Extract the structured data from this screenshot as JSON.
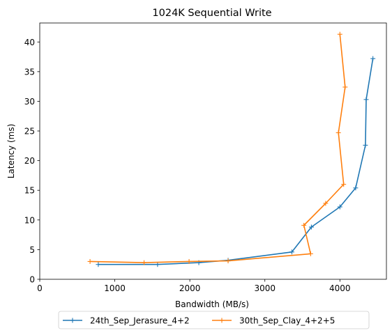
{
  "chart_data": {
    "type": "line",
    "title": "1024K  Sequential Write",
    "xlabel": "Bandwidth (MB/s)",
    "ylabel": "Latency (ms)",
    "xlim": [
      0,
      4620
    ],
    "ylim": [
      0,
      43.2
    ],
    "xticks": [
      0,
      1000,
      2000,
      3000,
      4000
    ],
    "yticks": [
      0,
      5,
      10,
      15,
      20,
      25,
      30,
      35,
      40
    ],
    "grid": false,
    "legend_position": "below",
    "series": [
      {
        "name": "24th_Sep_Jerasure_4+2",
        "color": "#1f77b4",
        "marker": "+",
        "x": [
          780,
          1570,
          2120,
          2510,
          3360,
          3620,
          4000,
          4210,
          4340,
          4350,
          4440
        ],
        "y": [
          2.5,
          2.5,
          2.8,
          3.2,
          4.6,
          8.8,
          12.2,
          15.4,
          22.6,
          30.3,
          37.2
        ]
      },
      {
        "name": "30th_Sep_Clay_4+2+5",
        "color": "#ff7f0e",
        "marker": "+",
        "x": [
          670,
          1390,
          1990,
          2510,
          3610,
          3520,
          3810,
          4050,
          3980,
          4070,
          4000
        ],
        "y": [
          3.0,
          2.8,
          3.0,
          3.1,
          4.3,
          9.1,
          12.8,
          16.0,
          24.7,
          32.4,
          41.3
        ]
      }
    ]
  }
}
